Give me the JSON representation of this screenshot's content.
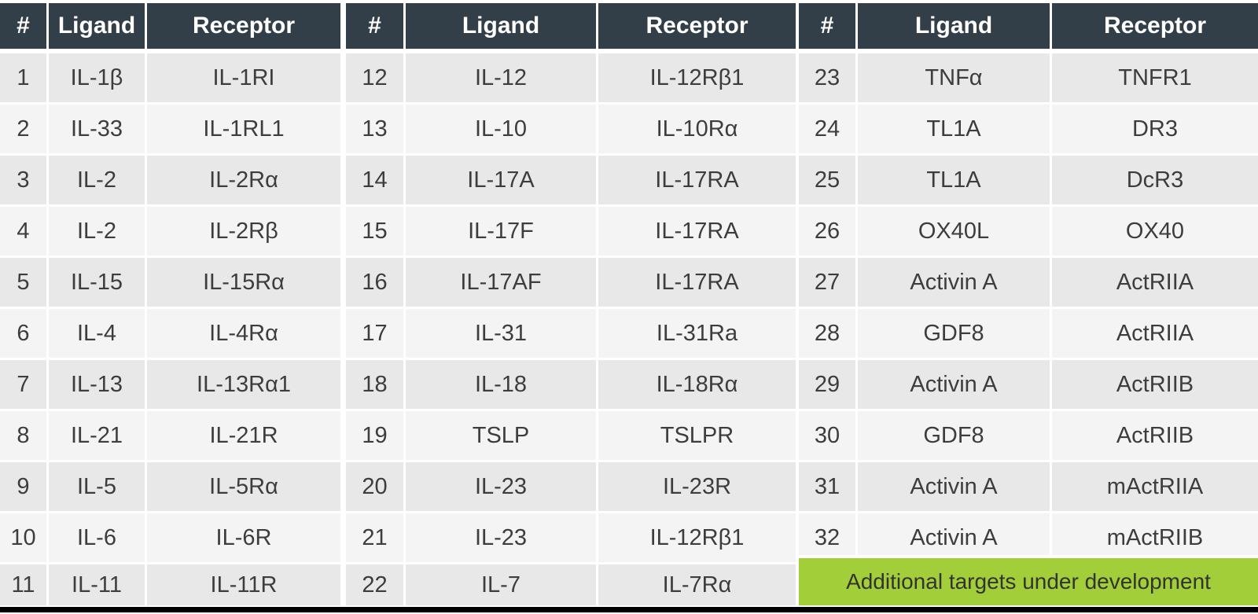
{
  "columns": [
    "#",
    "Ligand",
    "Receptor"
  ],
  "groups": [
    {
      "rows": [
        {
          "num": "1",
          "ligand": "IL-1β",
          "receptor": "IL-1RI"
        },
        {
          "num": "2",
          "ligand": "IL-33",
          "receptor": "IL-1RL1"
        },
        {
          "num": "3",
          "ligand": "IL-2",
          "receptor": "IL-2Rα"
        },
        {
          "num": "4",
          "ligand": "IL-2",
          "receptor": "IL-2Rβ"
        },
        {
          "num": "5",
          "ligand": "IL-15",
          "receptor": "IL-15Rα"
        },
        {
          "num": "6",
          "ligand": "IL-4",
          "receptor": "IL-4Rα"
        },
        {
          "num": "7",
          "ligand": "IL-13",
          "receptor": "IL-13Rα1"
        },
        {
          "num": "8",
          "ligand": "IL-21",
          "receptor": "IL-21R"
        },
        {
          "num": "9",
          "ligand": "IL-5",
          "receptor": "IL-5Rα"
        },
        {
          "num": "10",
          "ligand": "IL-6",
          "receptor": "IL-6R"
        },
        {
          "num": "11",
          "ligand": "IL-11",
          "receptor": "IL-11R"
        }
      ]
    },
    {
      "rows": [
        {
          "num": "12",
          "ligand": "IL-12",
          "receptor": "IL-12Rβ1"
        },
        {
          "num": "13",
          "ligand": "IL-10",
          "receptor": "IL-10Rα"
        },
        {
          "num": "14",
          "ligand": "IL-17A",
          "receptor": "IL-17RA"
        },
        {
          "num": "15",
          "ligand": "IL-17F",
          "receptor": "IL-17RA"
        },
        {
          "num": "16",
          "ligand": "IL-17AF",
          "receptor": "IL-17RA"
        },
        {
          "num": "17",
          "ligand": "IL-31",
          "receptor": "IL-31Ra"
        },
        {
          "num": "18",
          "ligand": "IL-18",
          "receptor": "IL-18Rα"
        },
        {
          "num": "19",
          "ligand": "TSLP",
          "receptor": "TSLPR"
        },
        {
          "num": "20",
          "ligand": "IL-23",
          "receptor": "IL-23R"
        },
        {
          "num": "21",
          "ligand": "IL-23",
          "receptor": "IL-12Rβ1"
        },
        {
          "num": "22",
          "ligand": "IL-7",
          "receptor": "IL-7Rα"
        }
      ]
    },
    {
      "rows": [
        {
          "num": "23",
          "ligand": "TNFα",
          "receptor": "TNFR1"
        },
        {
          "num": "24",
          "ligand": "TL1A",
          "receptor": "DR3"
        },
        {
          "num": "25",
          "ligand": "TL1A",
          "receptor": "DcR3"
        },
        {
          "num": "26",
          "ligand": "OX40L",
          "receptor": "OX40"
        },
        {
          "num": "27",
          "ligand": "Activin A",
          "receptor": "ActRIIA"
        },
        {
          "num": "28",
          "ligand": "GDF8",
          "receptor": "ActRIIA"
        },
        {
          "num": "29",
          "ligand": "Activin A",
          "receptor": "ActRIIB"
        },
        {
          "num": "30",
          "ligand": "GDF8",
          "receptor": "ActRIIB"
        },
        {
          "num": "31",
          "ligand": "Activin A",
          "receptor": "mActRIIA"
        },
        {
          "num": "32",
          "ligand": "Activin A",
          "receptor": "mActRIIB"
        }
      ],
      "footer_note": "Additional targets under development"
    }
  ],
  "colors": {
    "header_bg": "#333F48",
    "header_text": "#FFFFFF",
    "row_dark": "#E8E8E8",
    "row_light": "#F4F4F4",
    "cell_text": "#3D3D3D",
    "highlight_green": "#A2CE39",
    "highlight_text": "#333333",
    "bottom_bar": "#000000"
  }
}
